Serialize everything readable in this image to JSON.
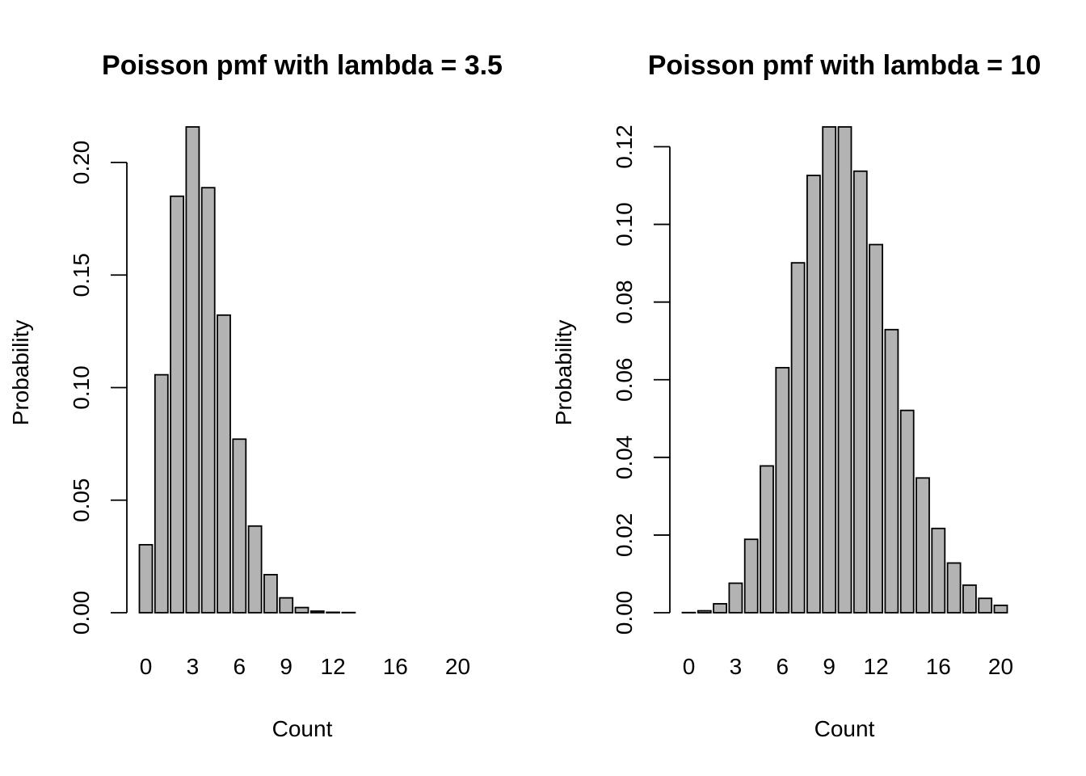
{
  "chart_data": [
    {
      "type": "bar",
      "title": "Poisson pmf with lambda = 3.5",
      "xlabel": "Count",
      "ylabel": "Probability",
      "categories": [
        "0",
        "1",
        "2",
        "3",
        "4",
        "5",
        "6",
        "7",
        "8",
        "9",
        "10",
        "11",
        "12",
        "13",
        "14",
        "15",
        "16",
        "17",
        "18",
        "19",
        "20"
      ],
      "values": [
        0.0302,
        0.1057,
        0.185,
        0.2158,
        0.1888,
        0.1322,
        0.0771,
        0.0385,
        0.0169,
        0.0066,
        0.0023,
        0.0007,
        0.0002,
        0.0001,
        0.0,
        0.0,
        0.0,
        0.0,
        0.0,
        0.0,
        0.0
      ],
      "x_tick_labels": [
        "0",
        "3",
        "6",
        "9",
        "12",
        "16",
        "20"
      ],
      "y_ticks": [
        0.0,
        0.05,
        0.1,
        0.15,
        0.2
      ],
      "y_tick_labels": [
        "0.00",
        "0.05",
        "0.10",
        "0.15",
        "0.20"
      ],
      "ylim": [
        0,
        0.2158
      ],
      "bar_color": "#b3b3b3",
      "grid": false,
      "legend": "none"
    },
    {
      "type": "bar",
      "title": "Poisson pmf with lambda = 10",
      "xlabel": "Count",
      "ylabel": "Probability",
      "categories": [
        "0",
        "1",
        "2",
        "3",
        "4",
        "5",
        "6",
        "7",
        "8",
        "9",
        "10",
        "11",
        "12",
        "13",
        "14",
        "15",
        "16",
        "17",
        "18",
        "19",
        "20"
      ],
      "values": [
        5e-05,
        0.0005,
        0.0023,
        0.0076,
        0.0189,
        0.0378,
        0.0631,
        0.0901,
        0.1126,
        0.1251,
        0.1251,
        0.1137,
        0.0948,
        0.0729,
        0.0521,
        0.0347,
        0.0217,
        0.0128,
        0.0071,
        0.0037,
        0.0019
      ],
      "x_tick_labels": [
        "0",
        "3",
        "6",
        "9",
        "12",
        "16",
        "20"
      ],
      "y_ticks": [
        0.0,
        0.02,
        0.04,
        0.06,
        0.08,
        0.1,
        0.12
      ],
      "y_tick_labels": [
        "0.00",
        "0.02",
        "0.04",
        "0.06",
        "0.08",
        "0.10",
        "0.12"
      ],
      "ylim": [
        0,
        0.1251
      ],
      "bar_color": "#b3b3b3",
      "grid": false,
      "legend": "none"
    }
  ]
}
